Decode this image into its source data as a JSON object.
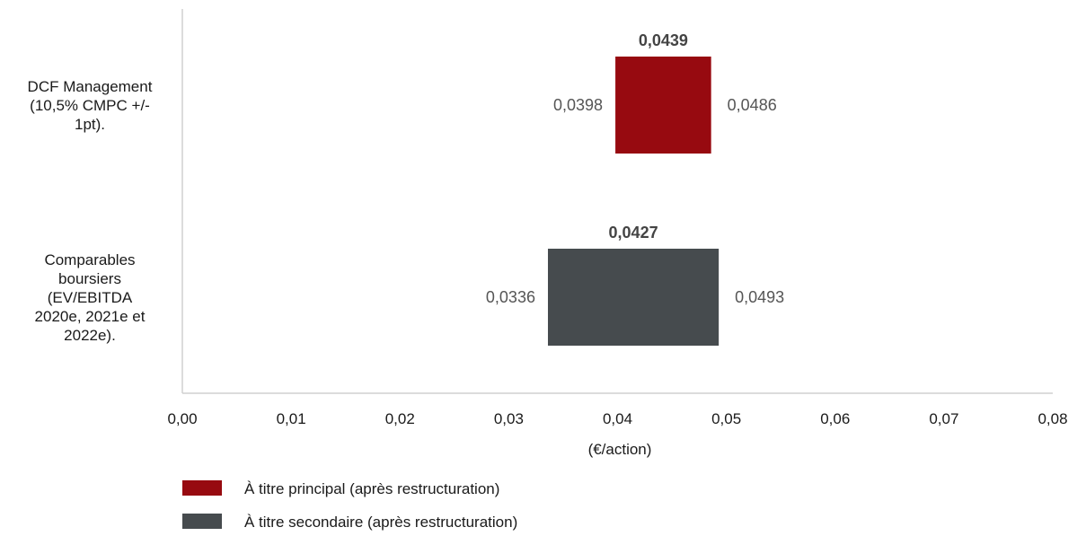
{
  "chart_data": {
    "type": "bar",
    "orientation": "horizontal-range",
    "xlabel": "(€/action)",
    "xlim": [
      0,
      0.08
    ],
    "x_ticks": [
      "0,00",
      "0,01",
      "0,02",
      "0,03",
      "0,04",
      "0,05",
      "0,06",
      "0,07",
      "0,08"
    ],
    "x_tick_values": [
      0,
      0.01,
      0.02,
      0.03,
      0.04,
      0.05,
      0.06,
      0.07,
      0.08
    ],
    "categories": [
      [
        "DCF Management",
        "(10,5% CMPC +/-",
        "1pt)."
      ],
      [
        "Comparables",
        "boursiers",
        "(EV/EBITDA",
        "2020e, 2021e et",
        "2022e)."
      ]
    ],
    "series": [
      {
        "name": "À titre principal (après restructuration)",
        "color": "#970a10",
        "low": 0.0398,
        "high": 0.0486,
        "mid": 0.0439,
        "low_label": "0,0398",
        "high_label": "0,0486",
        "mid_label": "0,0439"
      },
      {
        "name": "À titre secondaire (après restructuration)",
        "color": "#464b4e",
        "low": 0.0336,
        "high": 0.0493,
        "mid": 0.0427,
        "low_label": "0,0336",
        "high_label": "0,0493",
        "mid_label": "0,0427"
      }
    ],
    "grid": false,
    "legend_position": "bottom-left"
  }
}
